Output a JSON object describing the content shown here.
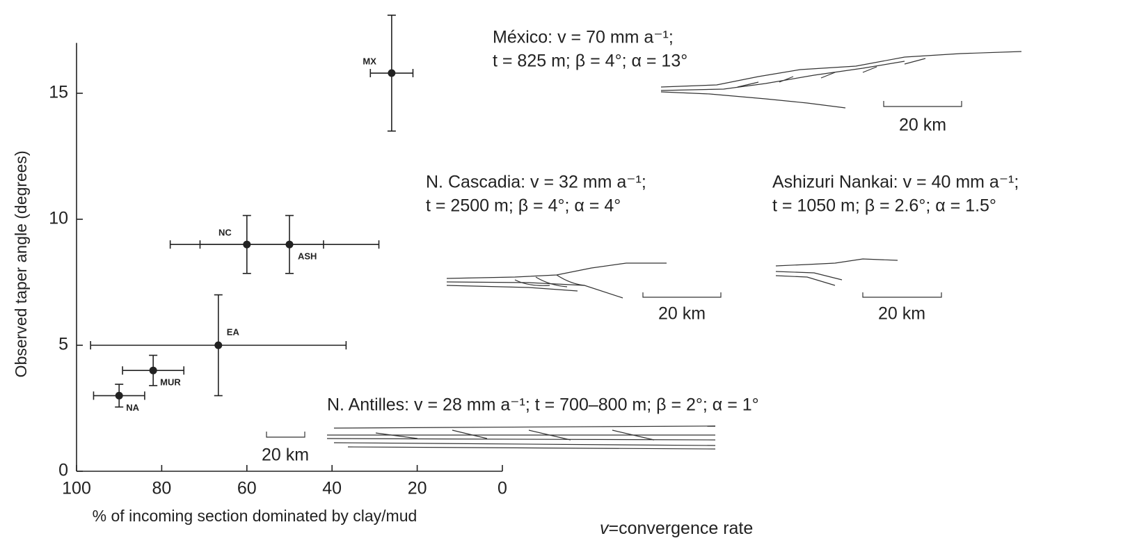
{
  "chart_data": {
    "type": "scatter",
    "xlabel": "% of incoming section dominated by clay/mud",
    "ylabel": "Observed taper angle (degrees)",
    "xlim": [
      100,
      0
    ],
    "ylim": [
      0,
      17
    ],
    "xticks": [
      100,
      80,
      60,
      40,
      20,
      0
    ],
    "yticks": [
      0,
      5,
      10,
      15
    ],
    "point_labels": [
      "MX",
      "NC",
      "ASH",
      "EA",
      "MUR",
      "NA"
    ],
    "x": [
      26,
      60,
      50,
      66.7,
      82,
      90
    ],
    "values": [
      15.8,
      9,
      9,
      5,
      4,
      3
    ],
    "xerr": [
      5,
      18,
      21,
      30,
      7.2,
      6
    ],
    "yerr": [
      2.3,
      1.15,
      1.15,
      2,
      0.6,
      0.45
    ],
    "color": "#222",
    "annotations": [
      {
        "lines": [
          "México: v = 70 mm a⁻¹;",
          "t = 825 m; β = 4°; α = 13°"
        ]
      },
      {
        "lines": [
          "N. Cascadia: v = 32 mm a⁻¹;",
          "t = 2500 m; β = 4°; α = 4°"
        ]
      },
      {
        "lines": [
          "Ashizuri Nankai: v = 40 mm a⁻¹;",
          "t = 1050 m; β = 2.6°; α = 1.5°"
        ]
      },
      {
        "lines": [
          "N. Antilles: v = 28 mm a⁻¹; t = 700–800 m; β = 2°; α = 1°"
        ]
      }
    ],
    "scale_labels": [
      "20 km",
      "20 km",
      "20 km",
      "20 km"
    ],
    "note": {
      "symbol": "v",
      "text": "=convergence rate"
    }
  }
}
